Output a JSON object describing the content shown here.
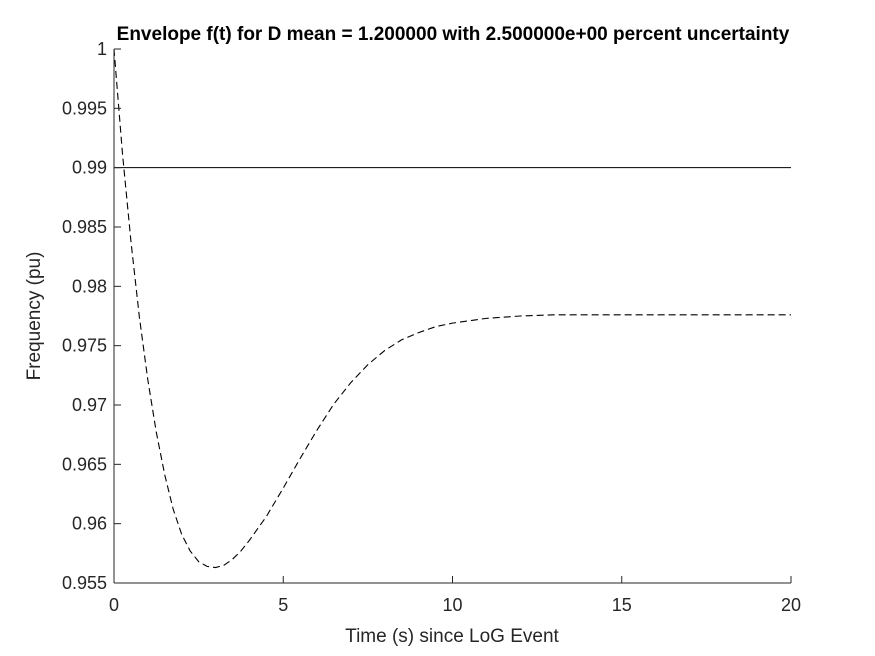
{
  "chart_data": {
    "type": "line",
    "title": "Envelope f(t) for D mean = 1.200000 with 2.500000e+00 percent uncertainty",
    "xlabel": "Time (s) since LoG Event",
    "ylabel": "Frequency (pu)",
    "xlim": [
      0,
      20
    ],
    "ylim": [
      0.955,
      1
    ],
    "xticks": [
      0,
      5,
      10,
      15,
      20
    ],
    "xtick_labels": [
      "0",
      "5",
      "10",
      "15",
      "20"
    ],
    "yticks": [
      0.955,
      0.96,
      0.965,
      0.97,
      0.975,
      0.98,
      0.985,
      0.99,
      0.995,
      1
    ],
    "ytick_labels": [
      "0.955",
      "0.96",
      "0.965",
      "0.97",
      "0.975",
      "0.98",
      "0.985",
      "0.99",
      "0.995",
      "1"
    ],
    "grid": false,
    "legend": "none",
    "series": [
      {
        "style": "dashed",
        "color": "#000000",
        "x": [
          0,
          0.25,
          0.5,
          0.75,
          1,
          1.25,
          1.5,
          1.75,
          2,
          2.25,
          2.5,
          2.75,
          3,
          3.25,
          3.5,
          3.75,
          4,
          4.5,
          5,
          5.5,
          6,
          6.5,
          7,
          7.5,
          8,
          8.5,
          9,
          9.5,
          10,
          11,
          12,
          13,
          14,
          15,
          16,
          17,
          18,
          19,
          20
        ],
        "y": [
          1.0,
          0.9912,
          0.9838,
          0.9774,
          0.9721,
          0.9677,
          0.9641,
          0.9612,
          0.9591,
          0.9577,
          0.9568,
          0.9564,
          0.9563,
          0.9565,
          0.957,
          0.9577,
          0.9586,
          0.9606,
          0.963,
          0.9655,
          0.9679,
          0.9701,
          0.9719,
          0.9734,
          0.9746,
          0.9755,
          0.9761,
          0.9766,
          0.9769,
          0.9773,
          0.9775,
          0.9776,
          0.9776,
          0.9776,
          0.9776,
          0.9776,
          0.9776,
          0.9776,
          0.9776
        ]
      }
    ],
    "reference_lines": [
      {
        "orientation": "horizontal",
        "y": 0.99,
        "color": "#000000",
        "style": "solid"
      }
    ]
  }
}
